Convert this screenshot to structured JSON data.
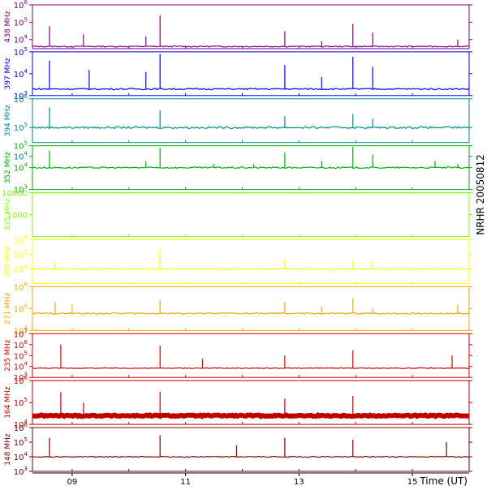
{
  "chart_data": {
    "type": "line",
    "title": "",
    "side_label": "NRHR 20050812",
    "xlabel": "Time (UT)",
    "x_range_hours": [
      8.3,
      16.0
    ],
    "x_ticks": [
      {
        "value": 9,
        "label": "09"
      },
      {
        "value": 11,
        "label": "11"
      },
      {
        "value": 13,
        "label": "13"
      },
      {
        "value": 15,
        "label": "15"
      }
    ],
    "y_scale": "log",
    "panels": [
      {
        "name": "438 MHz",
        "color": "#800080",
        "ylim": [
          3000,
          1000000
        ],
        "baseline": 4000,
        "y_ticks": [
          {
            "value": 1000000,
            "base": "10",
            "exp": "6"
          },
          {
            "value": 100000,
            "base": "10",
            "exp": "5"
          },
          {
            "value": 10000,
            "base": "10",
            "exp": "4"
          }
        ],
        "spikes": [
          [
            8.6,
            60000
          ],
          [
            9.2,
            20000
          ],
          [
            10.3,
            15000
          ],
          [
            10.55,
            250000
          ],
          [
            12.75,
            30000
          ],
          [
            13.4,
            8000
          ],
          [
            13.95,
            80000
          ],
          [
            14.3,
            25000
          ],
          [
            15.8,
            10000
          ]
        ]
      },
      {
        "name": "397 MHz",
        "color": "#0000ff",
        "ylim": [
          1000,
          100000
        ],
        "baseline": 2000,
        "y_ticks": [
          {
            "value": 100000,
            "base": "10",
            "exp": "5"
          },
          {
            "value": 10000,
            "base": "10",
            "exp": "4"
          },
          {
            "value": 1000,
            "base": "10",
            "exp": "3"
          }
        ],
        "spikes": [
          [
            8.6,
            40000
          ],
          [
            9.3,
            15000
          ],
          [
            10.3,
            12000
          ],
          [
            10.55,
            80000
          ],
          [
            12.75,
            25000
          ],
          [
            13.4,
            7000
          ],
          [
            13.95,
            60000
          ],
          [
            14.3,
            20000
          ]
        ]
      },
      {
        "name": "394 MHz",
        "color": "#008b8b",
        "ylim": [
          30000,
          1000000
        ],
        "baseline": 100000,
        "y_ticks": [
          {
            "value": 1000000,
            "base": "10",
            "exp": "6"
          },
          {
            "value": 100000,
            "base": "10",
            "exp": "5"
          },
          {
            "value": 10000,
            "base": "10",
            "exp": "4"
          }
        ],
        "spikes": [
          [
            8.6,
            500000
          ],
          [
            10.55,
            400000
          ],
          [
            12.75,
            250000
          ],
          [
            13.95,
            300000
          ],
          [
            14.3,
            200000
          ]
        ]
      },
      {
        "name": "352 MHz",
        "color": "#00b000",
        "ylim": [
          1000,
          100000
        ],
        "baseline": 10000,
        "y_ticks": [
          {
            "value": 100000,
            "base": "10",
            "exp": "5"
          },
          {
            "value": 10000,
            "base": "10",
            "exp": "4"
          },
          {
            "value": 1000,
            "base": "10",
            "exp": "3"
          }
        ],
        "spikes": [
          [
            8.6,
            60000
          ],
          [
            10.3,
            20000
          ],
          [
            10.55,
            80000
          ],
          [
            11.5,
            15000
          ],
          [
            12.2,
            15000
          ],
          [
            12.75,
            50000
          ],
          [
            13.4,
            20000
          ],
          [
            13.95,
            90000
          ],
          [
            14.3,
            40000
          ],
          [
            15.4,
            20000
          ],
          [
            15.8,
            15000
          ]
        ]
      },
      {
        "name": "335 MHz",
        "color": "#7fff00",
        "ylim": [
          100,
          10000
        ],
        "baseline": 10000,
        "y_ticks": [
          {
            "value": 10000,
            "base": "10000",
            "exp": ""
          },
          {
            "value": 1000,
            "base": "1000",
            "exp": ""
          }
        ],
        "spikes": []
      },
      {
        "name": "300 MHz",
        "color": "#ffff00",
        "ylim": [
          1000,
          1000000
        ],
        "baseline": 10000,
        "y_ticks": [
          {
            "value": 1000000,
            "base": "10",
            "exp": "6"
          },
          {
            "value": 100000,
            "base": "10",
            "exp": "5"
          },
          {
            "value": 10000,
            "base": "10",
            "exp": "4"
          }
        ],
        "spikes": [
          [
            8.7,
            30000
          ],
          [
            10.55,
            200000
          ],
          [
            12.75,
            60000
          ],
          [
            13.95,
            40000
          ],
          [
            14.3,
            30000
          ]
        ]
      },
      {
        "name": "271 MHz",
        "color": "#ffa500",
        "ylim": [
          10000,
          1000000
        ],
        "baseline": 60000,
        "y_ticks": [
          {
            "value": 1000000,
            "base": "10",
            "exp": "6"
          },
          {
            "value": 100000,
            "base": "10",
            "exp": "5"
          },
          {
            "value": 10000,
            "base": "10",
            "exp": "4"
          }
        ],
        "spikes": [
          [
            8.7,
            200000
          ],
          [
            9.0,
            150000
          ],
          [
            10.55,
            250000
          ],
          [
            12.75,
            200000
          ],
          [
            13.4,
            120000
          ],
          [
            13.95,
            300000
          ],
          [
            14.3,
            100000
          ],
          [
            15.8,
            150000
          ]
        ]
      },
      {
        "name": "235 MHz",
        "color": "#dd0000",
        "ylim": [
          1000,
          10000000
        ],
        "baseline": 7000,
        "y_ticks": [
          {
            "value": 10000000,
            "base": "10",
            "exp": "7"
          },
          {
            "value": 1000000,
            "base": "10",
            "exp": "6"
          },
          {
            "value": 100000,
            "base": "10",
            "exp": "5"
          },
          {
            "value": 10000,
            "base": "10",
            "exp": "4"
          },
          {
            "value": 1000,
            "base": "10",
            "exp": "3"
          }
        ],
        "spikes": [
          [
            8.8,
            1000000
          ],
          [
            10.55,
            800000
          ],
          [
            11.3,
            50000
          ],
          [
            12.75,
            100000
          ],
          [
            13.95,
            300000
          ],
          [
            15.7,
            100000
          ]
        ]
      },
      {
        "name": "164 MHz",
        "color": "#c00000",
        "ylim": [
          10000,
          1000000
        ],
        "baseline": 25000,
        "y_ticks": [
          {
            "value": 1000000,
            "base": "10",
            "exp": "6"
          },
          {
            "value": 100000,
            "base": "10",
            "exp": "5"
          },
          {
            "value": 10000,
            "base": "10",
            "exp": "4"
          }
        ],
        "spikes": [
          [
            8.8,
            300000
          ],
          [
            9.2,
            100000
          ],
          [
            10.55,
            300000
          ],
          [
            12.75,
            150000
          ],
          [
            13.95,
            200000
          ]
        ]
      },
      {
        "name": "148 MHz",
        "color": "#800000",
        "ylim": [
          1000,
          1000000
        ],
        "baseline": 10000,
        "y_ticks": [
          {
            "value": 1000000,
            "base": "10",
            "exp": "6"
          },
          {
            "value": 100000,
            "base": "10",
            "exp": "5"
          },
          {
            "value": 10000,
            "base": "10",
            "exp": "4"
          },
          {
            "value": 1000,
            "base": "10",
            "exp": "3"
          }
        ],
        "spikes": [
          [
            8.6,
            200000
          ],
          [
            10.55,
            300000
          ],
          [
            11.9,
            60000
          ],
          [
            12.75,
            200000
          ],
          [
            13.95,
            150000
          ],
          [
            15.6,
            100000
          ]
        ]
      }
    ]
  }
}
